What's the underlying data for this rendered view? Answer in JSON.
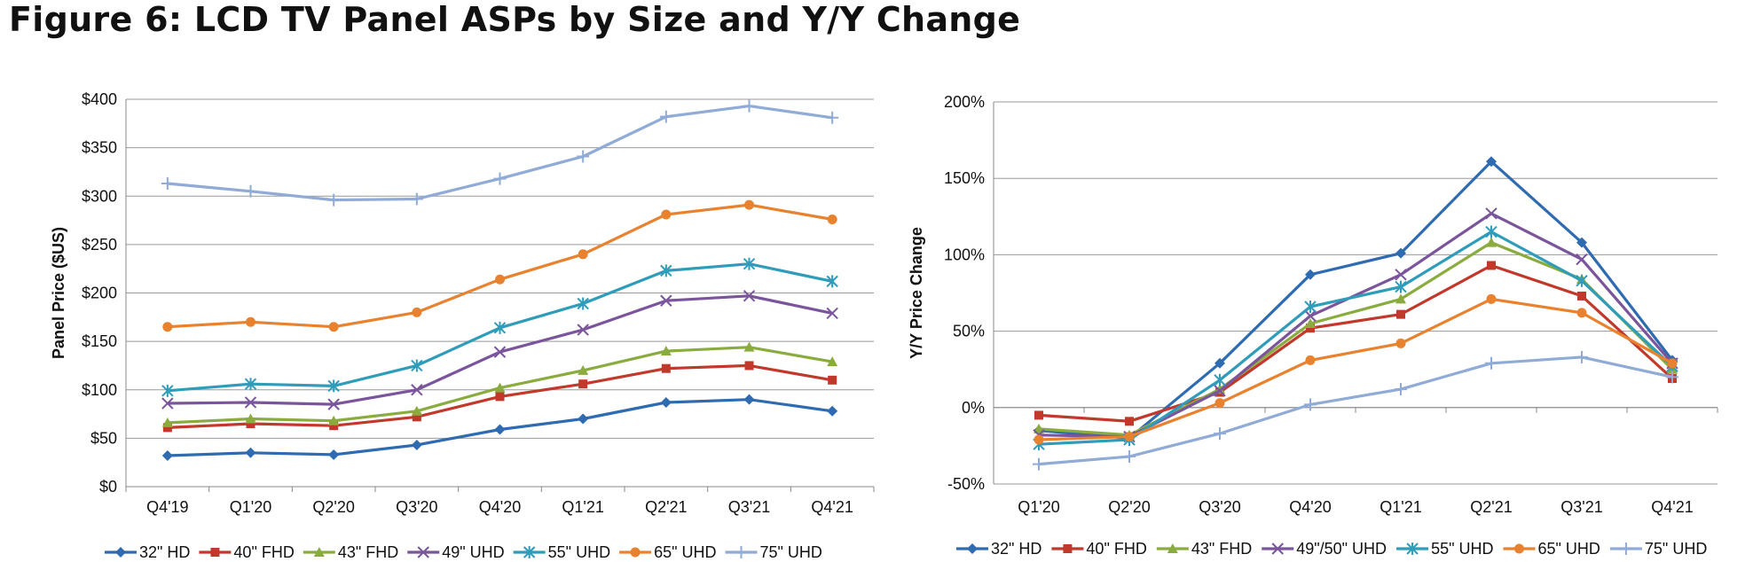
{
  "figure_title": "Figure 6: LCD TV Panel ASPs by Size and Y/Y Change",
  "chart_data": [
    {
      "type": "line",
      "title": "",
      "xlabel": "",
      "ylabel": "Panel Price ($US)",
      "ylim": [
        0,
        400
      ],
      "y_ticks": [
        0,
        50,
        100,
        150,
        200,
        250,
        300,
        350,
        400
      ],
      "y_tick_labels": [
        "$0",
        "$50",
        "$100",
        "$150",
        "$200",
        "$250",
        "$300",
        "$350",
        "$400"
      ],
      "grid": true,
      "legend": "bottom",
      "categories": [
        "Q4'19",
        "Q1'20",
        "Q2'20",
        "Q3'20",
        "Q4'20",
        "Q1'21",
        "Q2'21",
        "Q3'21",
        "Q4'21"
      ],
      "series": [
        {
          "name": "32\" HD",
          "color": "#2e6bb0",
          "marker": "diamond",
          "values": [
            32,
            35,
            33,
            43,
            59,
            70,
            87,
            90,
            78
          ]
        },
        {
          "name": "40\" FHD",
          "color": "#c0392b",
          "marker": "square",
          "values": [
            61,
            65,
            63,
            72,
            93,
            106,
            122,
            125,
            110
          ]
        },
        {
          "name": "43\" FHD",
          "color": "#8aac3e",
          "marker": "triangle",
          "values": [
            66,
            70,
            68,
            78,
            102,
            120,
            140,
            144,
            129
          ]
        },
        {
          "name": "49\" UHD",
          "color": "#7b559c",
          "marker": "x",
          "values": [
            86,
            87,
            85,
            100,
            139,
            162,
            192,
            197,
            179
          ]
        },
        {
          "name": "55\" UHD",
          "color": "#2f9cba",
          "marker": "star",
          "values": [
            99,
            106,
            104,
            125,
            164,
            189,
            223,
            230,
            212
          ]
        },
        {
          "name": "65\" UHD",
          "color": "#e8822e",
          "marker": "circle",
          "values": [
            165,
            170,
            165,
            180,
            214,
            240,
            281,
            291,
            276
          ]
        },
        {
          "name": "75\" UHD",
          "color": "#8fabd6",
          "marker": "plus",
          "values": [
            313,
            305,
            296,
            297,
            318,
            341,
            382,
            393,
            381
          ]
        }
      ]
    },
    {
      "type": "line",
      "title": "",
      "xlabel": "",
      "ylabel": "Y/Y Price Change",
      "ylim": [
        -50,
        200
      ],
      "y_ticks": [
        -50,
        0,
        50,
        100,
        150,
        200
      ],
      "y_tick_labels": [
        "-50%",
        "0%",
        "50%",
        "100%",
        "150%",
        "200%"
      ],
      "grid": true,
      "legend": "bottom",
      "categories": [
        "Q1'20",
        "Q2'20",
        "Q3'20",
        "Q4'20",
        "Q1'21",
        "Q2'21",
        "Q3'21",
        "Q4'21"
      ],
      "series": [
        {
          "name": "32\" HD",
          "color": "#2e6bb0",
          "marker": "diamond",
          "values": [
            -15,
            -20,
            29,
            87,
            101,
            161,
            108,
            31
          ]
        },
        {
          "name": "40\" FHD",
          "color": "#c0392b",
          "marker": "square",
          "values": [
            -5,
            -9,
            10,
            52,
            61,
            93,
            73,
            19
          ]
        },
        {
          "name": "43\" FHD",
          "color": "#8aac3e",
          "marker": "triangle",
          "values": [
            -14,
            -18,
            12,
            55,
            71,
            108,
            84,
            25
          ]
        },
        {
          "name": "49\"/50\" UHD",
          "color": "#7b559c",
          "marker": "x",
          "values": [
            -18,
            -19,
            11,
            60,
            87,
            127,
            97,
            29
          ]
        },
        {
          "name": "55\" UHD",
          "color": "#2f9cba",
          "marker": "star",
          "values": [
            -24,
            -21,
            18,
            66,
            79,
            115,
            83,
            27
          ]
        },
        {
          "name": "65\" UHD",
          "color": "#e8822e",
          "marker": "circle",
          "values": [
            -21,
            -19,
            3,
            31,
            42,
            71,
            62,
            29
          ]
        },
        {
          "name": "75\" UHD",
          "color": "#8fabd6",
          "marker": "plus",
          "values": [
            -37,
            -32,
            -17,
            2,
            12,
            29,
            33,
            20
          ]
        }
      ]
    }
  ]
}
